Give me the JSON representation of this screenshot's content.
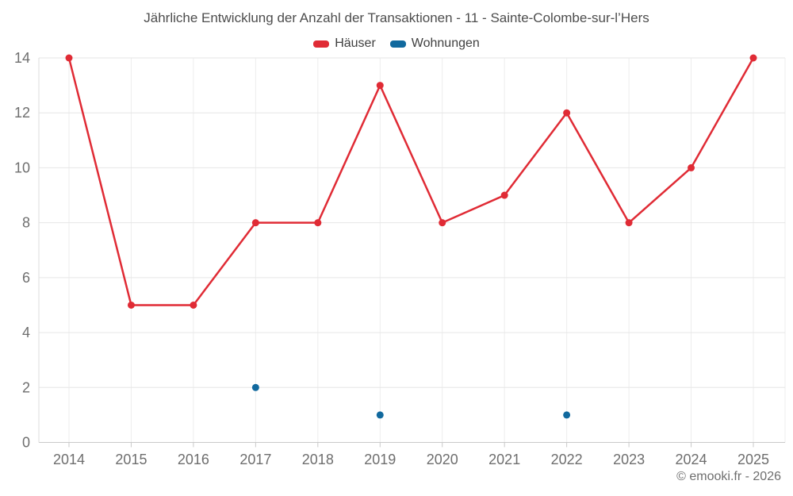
{
  "header": {
    "title": "Jährliche Entwicklung der Anzahl der Transaktionen - 11 - Sainte-Colombe-sur-l’Hers"
  },
  "legend": {
    "items": [
      {
        "label": "Häuser",
        "color": "#e02b35"
      },
      {
        "label": "Wohnungen",
        "color": "#11699e"
      }
    ]
  },
  "footer": {
    "copyright": "© emooki.fr - 2026"
  },
  "colors": {
    "grid_horizontal": "#e6e6e6",
    "grid_vertical": "#ededed",
    "axis_bottom": "#c9c9c9",
    "axis_left": "#dcdcdc",
    "tick_label": "#6e6e6e"
  },
  "chart_data": {
    "type": "line",
    "title": "Jährliche Entwicklung der Anzahl der Transaktionen - 11 - Sainte-Colombe-sur-l’Hers",
    "categories": [
      "2014",
      "2015",
      "2016",
      "2017",
      "2018",
      "2019",
      "2020",
      "2021",
      "2022",
      "2023",
      "2024",
      "2025"
    ],
    "series": [
      {
        "name": "Häuser",
        "color": "#e02b35",
        "style": "line+markers",
        "values": [
          14,
          5,
          5,
          8,
          8,
          13,
          8,
          9,
          12,
          8,
          10,
          14
        ]
      },
      {
        "name": "Wohnungen",
        "color": "#11699e",
        "style": "markers",
        "values": [
          null,
          null,
          null,
          2,
          null,
          1,
          null,
          null,
          1,
          null,
          null,
          null
        ]
      }
    ],
    "xlabel": "",
    "ylabel": "",
    "ylim": [
      0,
      14
    ],
    "ytick_step": 2,
    "yticks": [
      0,
      2,
      4,
      6,
      8,
      10,
      12,
      14
    ],
    "grid": true,
    "legend_position": "top"
  }
}
